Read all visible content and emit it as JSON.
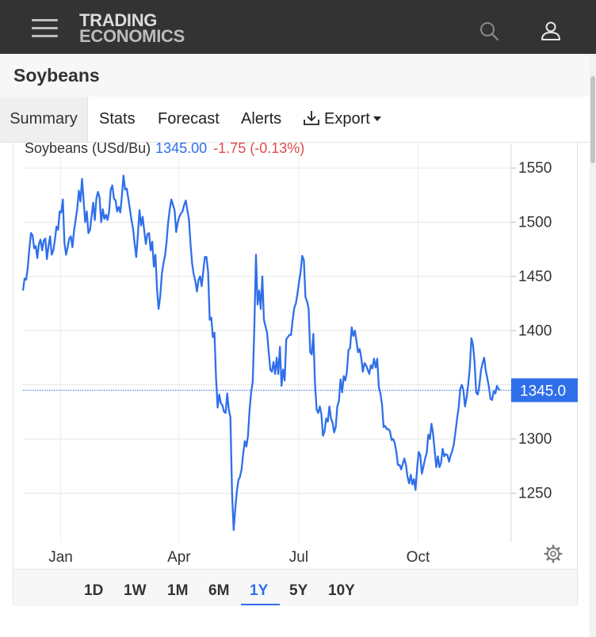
{
  "header": {
    "logo_line1": "TRADING",
    "logo_line2": "ECONOMICS",
    "menu_icon": "hamburger-menu-icon",
    "search_icon": "search-icon",
    "user_icon": "user-icon"
  },
  "page": {
    "title": "Soybeans"
  },
  "tabs": [
    {
      "label": "Summary",
      "active": true
    },
    {
      "label": "Stats"
    },
    {
      "label": "Forecast"
    },
    {
      "label": "Alerts"
    },
    {
      "label": "Export",
      "icon": "download-icon"
    }
  ],
  "chart_header": {
    "name": "Soybeans (USd/Bu)",
    "price": "1345.00",
    "change": "-1.75 (-0.13%)"
  },
  "chart_data": {
    "type": "line",
    "series": [
      {
        "name": "Soybeans (USd/Bu)",
        "color": "#2f6fea",
        "values": [
          1437,
          1448,
          1447,
          1458,
          1476,
          1490,
          1488,
          1476,
          1478,
          1467,
          1480,
          1484,
          1474,
          1483,
          1485,
          1466,
          1478,
          1487,
          1470,
          1474,
          1484,
          1496,
          1493,
          1510,
          1509,
          1521,
          1481,
          1470,
          1477,
          1485,
          1487,
          1477,
          1492,
          1502,
          1513,
          1529,
          1519,
          1540,
          1520,
          1500,
          1510,
          1490,
          1493,
          1506,
          1518,
          1502,
          1522,
          1528,
          1523,
          1500,
          1512,
          1503,
          1507,
          1502,
          1510,
          1530,
          1534,
          1522,
          1520,
          1510,
          1514,
          1509,
          1524,
          1543,
          1530,
          1531,
          1522,
          1512,
          1502,
          1494,
          1480,
          1468,
          1489,
          1511,
          1497,
          1505,
          1492,
          1480,
          1489,
          1490,
          1474,
          1482,
          1459,
          1470,
          1439,
          1420,
          1432,
          1452,
          1462,
          1469,
          1482,
          1500,
          1512,
          1521,
          1516,
          1511,
          1491,
          1500,
          1505,
          1508,
          1510,
          1516,
          1520,
          1511,
          1503,
          1480,
          1462,
          1452,
          1446,
          1436,
          1447,
          1450,
          1441,
          1455,
          1468,
          1468,
          1454,
          1410,
          1412,
          1394,
          1398,
          1356,
          1329,
          1341,
          1333,
          1331,
          1325,
          1324,
          1342,
          1327,
          1320,
          1250,
          1216,
          1235,
          1251,
          1262,
          1265,
          1272,
          1286,
          1298,
          1293,
          1303,
          1327,
          1343,
          1353,
          1403,
          1470,
          1424,
          1437,
          1420,
          1450,
          1410,
          1404,
          1398,
          1380,
          1364,
          1362,
          1371,
          1360,
          1375,
          1360,
          1385,
          1349,
          1364,
          1354,
          1392,
          1394,
          1396,
          1396,
          1410,
          1421,
          1425,
          1434,
          1445,
          1454,
          1469,
          1465,
          1431,
          1427,
          1420,
          1380,
          1378,
          1397,
          1352,
          1327,
          1324,
          1330,
          1323,
          1303,
          1307,
          1319,
          1316,
          1330,
          1319,
          1315,
          1306,
          1311,
          1330,
          1335,
          1355,
          1343,
          1358,
          1354,
          1362,
          1382,
          1384,
          1403,
          1395,
          1400,
          1390,
          1380,
          1383,
          1375,
          1362,
          1370,
          1368,
          1364,
          1360,
          1368,
          1365,
          1374,
          1366,
          1374,
          1348,
          1342,
          1332,
          1311,
          1312,
          1309,
          1309,
          1307,
          1299,
          1300,
          1296,
          1288,
          1276,
          1276,
          1272,
          1277,
          1282,
          1276,
          1265,
          1259,
          1267,
          1258,
          1263,
          1253,
          1273,
          1288,
          1285,
          1268,
          1275,
          1282,
          1287,
          1304,
          1300,
          1314,
          1305,
          1289,
          1274,
          1284,
          1274,
          1278,
          1291,
          1284,
          1286,
          1285,
          1279,
          1285,
          1289,
          1295,
          1306,
          1318,
          1329,
          1346,
          1350,
          1345,
          1330,
          1338,
          1350,
          1365,
          1393,
          1387,
          1371,
          1343,
          1341,
          1349,
          1363,
          1370,
          1375,
          1363,
          1356,
          1348,
          1337,
          1336,
          1344,
          1342,
          1349,
          1346,
          1345
        ]
      }
    ],
    "x_labels": [
      "Jan",
      "Apr",
      "Jul",
      "Oct"
    ],
    "y_ticks": [
      1250,
      1300,
      1350,
      1400,
      1450,
      1500,
      1550
    ],
    "ylim": [
      1205,
      1572
    ],
    "current_value": 1345,
    "current_label": "1345.0",
    "grid": true
  },
  "ranges": [
    {
      "label": "1D"
    },
    {
      "label": "1W"
    },
    {
      "label": "1M"
    },
    {
      "label": "6M"
    },
    {
      "label": "1Y",
      "active": true
    },
    {
      "label": "5Y"
    },
    {
      "label": "10Y"
    }
  ],
  "settings_icon": "gear-icon",
  "colors": {
    "topbar": "#333333",
    "accent": "#2f6fea",
    "negative": "#e24a4a"
  }
}
